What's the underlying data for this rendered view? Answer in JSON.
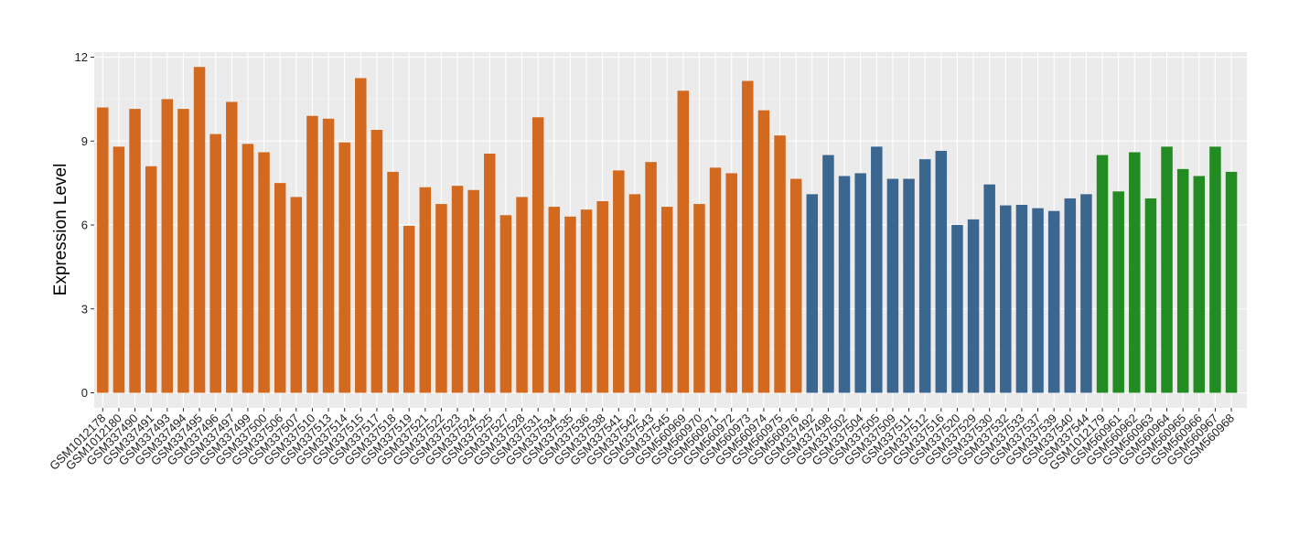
{
  "chart_data": {
    "type": "bar",
    "title": "",
    "xlabel": "",
    "ylabel": "Expression Level",
    "ylim": [
      0,
      12
    ],
    "yticks": [
      0,
      3,
      6,
      9,
      12
    ],
    "grid": true,
    "legend": "none",
    "group_colors": [
      "#D2691E",
      "#3A6690",
      "#228B22"
    ],
    "categories": [
      "GSM1012178",
      "GSM1012180",
      "GSM337490",
      "GSM337491",
      "GSM337493",
      "GSM337494",
      "GSM337495",
      "GSM337496",
      "GSM337497",
      "GSM337499",
      "GSM337500",
      "GSM337506",
      "GSM337507",
      "GSM337510",
      "GSM337513",
      "GSM337514",
      "GSM337515",
      "GSM337517",
      "GSM337518",
      "GSM337519",
      "GSM337521",
      "GSM337522",
      "GSM337523",
      "GSM337524",
      "GSM337525",
      "GSM337527",
      "GSM337528",
      "GSM337531",
      "GSM337534",
      "GSM337535",
      "GSM337536",
      "GSM337538",
      "GSM337541",
      "GSM337542",
      "GSM337543",
      "GSM337545",
      "GSM560969",
      "GSM560970",
      "GSM560971",
      "GSM560972",
      "GSM560973",
      "GSM560974",
      "GSM560975",
      "GSM560976",
      "GSM337492",
      "GSM337498",
      "GSM337502",
      "GSM337504",
      "GSM337505",
      "GSM337509",
      "GSM337511",
      "GSM337512",
      "GSM337516",
      "GSM337520",
      "GSM337529",
      "GSM337530",
      "GSM337532",
      "GSM337533",
      "GSM337537",
      "GSM337539",
      "GSM337540",
      "GSM337544",
      "GSM1012179",
      "GSM560961",
      "GSM560962",
      "GSM560963",
      "GSM560964",
      "GSM560965",
      "GSM560966",
      "GSM560967",
      "GSM560968"
    ],
    "values": [
      10.2,
      8.8,
      10.15,
      8.1,
      10.5,
      10.15,
      11.65,
      9.25,
      10.4,
      8.9,
      8.6,
      7.5,
      7.0,
      9.9,
      9.8,
      8.95,
      11.25,
      9.4,
      7.9,
      5.97,
      7.35,
      6.75,
      7.4,
      7.25,
      8.55,
      6.35,
      7.0,
      9.85,
      6.65,
      6.3,
      6.55,
      6.85,
      7.95,
      7.1,
      8.25,
      6.65,
      10.8,
      6.75,
      8.05,
      7.85,
      11.15,
      10.1,
      9.2,
      7.65,
      7.1,
      8.5,
      7.75,
      7.85,
      8.8,
      7.65,
      7.65,
      8.35,
      8.65,
      6.0,
      6.2,
      7.45,
      6.7,
      6.72,
      6.6,
      6.5,
      6.95,
      7.1,
      8.5,
      7.2,
      8.6,
      6.95,
      8.8,
      8.0,
      7.75,
      8.8,
      7.9
    ],
    "groups": [
      0,
      0,
      0,
      0,
      0,
      0,
      0,
      0,
      0,
      0,
      0,
      0,
      0,
      0,
      0,
      0,
      0,
      0,
      0,
      0,
      0,
      0,
      0,
      0,
      0,
      0,
      0,
      0,
      0,
      0,
      0,
      0,
      0,
      0,
      0,
      0,
      0,
      0,
      0,
      0,
      0,
      0,
      0,
      0,
      1,
      1,
      1,
      1,
      1,
      1,
      1,
      1,
      1,
      1,
      1,
      1,
      1,
      1,
      1,
      1,
      1,
      1,
      2,
      2,
      2,
      2,
      2,
      2,
      2,
      2,
      2
    ]
  }
}
